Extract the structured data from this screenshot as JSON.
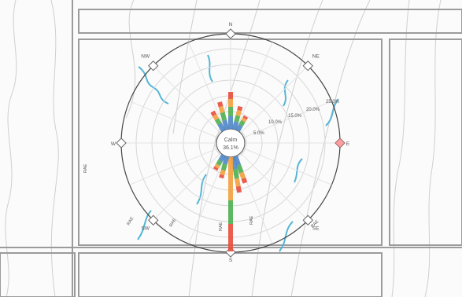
{
  "compass": {
    "n": "N",
    "s": "S",
    "e": "E",
    "w": "W",
    "ne": "NE",
    "nw": "NW",
    "se": "SE",
    "sw": "SW"
  },
  "center": {
    "line1": "Calm",
    "line2": "36.1%"
  },
  "rings": [
    "5.0%",
    "10.0%",
    "15.0%",
    "20.0%",
    "25.0%"
  ],
  "roads": {
    "left": "RAE",
    "bottom_left": "RAE",
    "bottom_left2": "RAE",
    "bottom_mid": "RAE",
    "bottom_mid2": "RAE",
    "bottom_right": "RAE"
  },
  "colors": {
    "sector_blue": "#4f86c6",
    "sector_green": "#4caf50",
    "sector_orange": "#f2a03d",
    "sector_red": "#e74c3c",
    "river": "#55b6d6",
    "compass_fill": "#ff6b6b"
  }
}
